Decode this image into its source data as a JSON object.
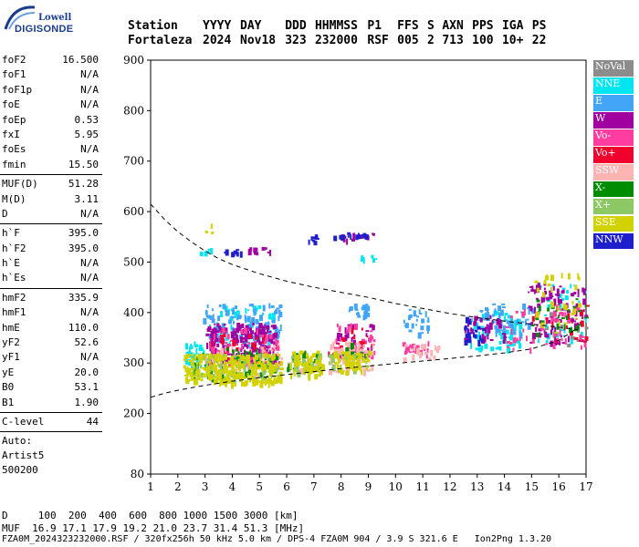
{
  "logo": {
    "top": "Lowell",
    "bottom": "DIGISONDE"
  },
  "header": {
    "labels": [
      "Station",
      "YYYY",
      "DAY",
      "DDD",
      "HHMMSS",
      "P1",
      "FFS",
      "S",
      "AXN",
      "PPS",
      "IGA",
      "PS"
    ],
    "values": [
      "Fortaleza",
      "2024",
      "Nov18",
      "323",
      "232000",
      "RSF",
      "005",
      "2",
      "713",
      "100",
      "10+",
      "22"
    ]
  },
  "side": {
    "group1": [
      {
        "k": "foF2",
        "v": "16.500"
      },
      {
        "k": "foF1",
        "v": "N/A"
      },
      {
        "k": "foF1p",
        "v": "N/A"
      },
      {
        "k": "foE",
        "v": "N/A"
      },
      {
        "k": "foEp",
        "v": "0.53"
      },
      {
        "k": "fxI",
        "v": "5.95"
      },
      {
        "k": "foEs",
        "v": "N/A"
      },
      {
        "k": "fmin",
        "v": "15.50"
      }
    ],
    "group2": [
      {
        "k": "MUF(D)",
        "v": "51.28"
      },
      {
        "k": "M(D)",
        "v": "3.11"
      },
      {
        "k": "D",
        "v": "N/A"
      }
    ],
    "group3": [
      {
        "k": "h`F",
        "v": "395.0"
      },
      {
        "k": "h`F2",
        "v": "395.0"
      },
      {
        "k": "h`E",
        "v": "N/A"
      },
      {
        "k": "h`Es",
        "v": "N/A"
      }
    ],
    "group4": [
      {
        "k": "hmF2",
        "v": "335.9"
      },
      {
        "k": "hmF1",
        "v": "N/A"
      },
      {
        "k": "hmE",
        "v": "110.0"
      },
      {
        "k": "yF2",
        "v": "52.6"
      },
      {
        "k": "yF1",
        "v": "N/A"
      },
      {
        "k": "yE",
        "v": "20.0"
      },
      {
        "k": "B0",
        "v": "53.1"
      },
      {
        "k": "B1",
        "v": "1.90"
      }
    ],
    "group5": [
      {
        "k": "C-level",
        "v": "44"
      }
    ],
    "auto": [
      "Auto:",
      "Artist5",
      "500200"
    ]
  },
  "legend": [
    {
      "label": "NoVal",
      "color": "#8c8c8c"
    },
    {
      "label": "NNE",
      "color": "#00e6f0"
    },
    {
      "label": "E",
      "color": "#42a5f5"
    },
    {
      "label": "W",
      "color": "#a000a0"
    },
    {
      "label": "Vo-",
      "color": "#ff3ca0"
    },
    {
      "label": "Vo+",
      "color": "#f0002d"
    },
    {
      "label": "SSW",
      "color": "#ffb4b4"
    },
    {
      "label": "X-",
      "color": "#008c00"
    },
    {
      "label": "X+",
      "color": "#8cc864"
    },
    {
      "label": "SSE",
      "color": "#d2d200"
    },
    {
      "label": "NNW",
      "color": "#1e1ecc"
    }
  ],
  "bottom": {
    "d_line": "D     100  200  400  600  800 1000 1500 3000 [km]",
    "muf_line": "MUF  16.9 17.1 17.9 19.2 21.0 23.7 31.4 51.3 [MHz]",
    "footer": "FZA0M_2024323232000.RSF / 320fx256h 50 kHz 5.0 km / DPS-4 FZA0M 904 / 3.9 S 321.6 E   Ion2Png 1.3.20"
  },
  "chart_data": {
    "type": "scatter",
    "title": "",
    "xlabel": "",
    "ylabel": "",
    "xlim": [
      1,
      17
    ],
    "ylim": [
      80,
      900
    ],
    "x_ticks": [
      1,
      2,
      3,
      4,
      5,
      6,
      7,
      8,
      9,
      10,
      11,
      12,
      13,
      14,
      15,
      16,
      17
    ],
    "y_ticks": [
      80,
      200,
      300,
      400,
      500,
      600,
      700,
      800,
      900
    ],
    "grid": false,
    "legend_placement": "right",
    "curves": {
      "upper_dashed": [
        [
          1,
          615
        ],
        [
          1.5,
          585
        ],
        [
          2,
          560
        ],
        [
          2.5,
          540
        ],
        [
          3,
          522
        ],
        [
          3.5,
          507
        ],
        [
          4,
          495
        ],
        [
          5,
          477
        ],
        [
          6,
          462
        ],
        [
          7,
          450
        ],
        [
          8,
          440
        ],
        [
          9,
          430
        ],
        [
          10,
          418
        ],
        [
          11,
          408
        ],
        [
          12,
          398
        ],
        [
          13,
          390
        ],
        [
          14,
          383
        ],
        [
          15,
          377
        ],
        [
          16,
          371
        ],
        [
          16.7,
          366
        ]
      ],
      "lower_dashed": [
        [
          1,
          232
        ],
        [
          1.5,
          240
        ],
        [
          2,
          246
        ],
        [
          3,
          256
        ],
        [
          4,
          264
        ],
        [
          5,
          271
        ],
        [
          6,
          277
        ],
        [
          7,
          283
        ],
        [
          8,
          289
        ],
        [
          9,
          294
        ],
        [
          10,
          299
        ],
        [
          11,
          304
        ],
        [
          12,
          309
        ],
        [
          13,
          314
        ],
        [
          14,
          320
        ],
        [
          15,
          328
        ],
        [
          16,
          345
        ],
        [
          16.7,
          370
        ]
      ]
    },
    "series": [
      {
        "name": "NoVal",
        "color": "#8c8c8c",
        "clusters": [
          [
            [
              15.3,
              17.0
            ],
            [
              330,
              420
            ],
            20
          ]
        ]
      },
      {
        "name": "NNE",
        "color": "#00e6f0",
        "clusters": [
          [
            [
              2.2,
              3.0
            ],
            [
              295,
              345
            ],
            35
          ],
          [
            [
              3.5,
              5.5
            ],
            [
              340,
              415
            ],
            50
          ],
          [
            [
              12.6,
              14.6
            ],
            [
              330,
              405
            ],
            70
          ],
          [
            [
              15.2,
              17
            ],
            [
              340,
              470
            ],
            40
          ],
          [
            [
              8.7,
              9.3
            ],
            [
              505,
              515
            ],
            8
          ],
          [
            [
              2.8,
              3.2
            ],
            [
              520,
              528
            ],
            6
          ]
        ]
      },
      {
        "name": "E",
        "color": "#42a5f5",
        "clusters": [
          [
            [
              2.9,
              5.8
            ],
            [
              350,
              420
            ],
            110
          ],
          [
            [
              8.2,
              9.0
            ],
            [
              395,
              420
            ],
            20
          ],
          [
            [
              13.0,
              15.0
            ],
            [
              360,
              420
            ],
            60
          ],
          [
            [
              10.2,
              11.2
            ],
            [
              360,
              410
            ],
            25
          ]
        ]
      },
      {
        "name": "W",
        "color": "#a000a0",
        "clusters": [
          [
            [
              3.0,
              5.6
            ],
            [
              300,
              380
            ],
            200
          ],
          [
            [
              7.8,
              9.2
            ],
            [
              310,
              380
            ],
            40
          ],
          [
            [
              12.5,
              14.0
            ],
            [
              345,
              395
            ],
            40
          ],
          [
            [
              14.8,
              17
            ],
            [
              340,
              460
            ],
            90
          ],
          [
            [
              4.5,
              5.6
            ],
            [
              520,
              530
            ],
            10
          ],
          [
            [
              8,
              9.2
            ],
            [
              545,
              560
            ],
            10
          ]
        ]
      },
      {
        "name": "Vo-",
        "color": "#ff3ca0",
        "clusters": [
          [
            [
              3.0,
              5.7
            ],
            [
              300,
              370
            ],
            60
          ],
          [
            [
              7.7,
              9.2
            ],
            [
              310,
              380
            ],
            35
          ],
          [
            [
              10.2,
              11.2
            ],
            [
              320,
              345
            ],
            20
          ],
          [
            [
              14.0,
              17
            ],
            [
              330,
              420
            ],
            50
          ]
        ]
      },
      {
        "name": "Vo+",
        "color": "#f0002d",
        "clusters": [
          [
            [
              3.2,
              5.5
            ],
            [
              310,
              360
            ],
            25
          ],
          [
            [
              7.5,
              9.2
            ],
            [
              310,
              370
            ],
            18
          ],
          [
            [
              15,
              17
            ],
            [
              340,
              420
            ],
            20
          ]
        ]
      },
      {
        "name": "SSW",
        "color": "#ffb4b4",
        "clusters": [
          [
            [
              3.0,
              5.8
            ],
            [
              280,
              340
            ],
            60
          ],
          [
            [
              7.5,
              9.2
            ],
            [
              285,
              345
            ],
            70
          ],
          [
            [
              6.0,
              7.2
            ],
            [
              290,
              330
            ],
            15
          ],
          [
            [
              10.2,
              11.6
            ],
            [
              310,
              340
            ],
            20
          ]
        ]
      },
      {
        "name": "X-",
        "color": "#008c00",
        "clusters": [
          [
            [
              2.5,
              5.7
            ],
            [
              270,
              330
            ],
            80
          ],
          [
            [
              6.0,
              7.2
            ],
            [
              290,
              325
            ],
            25
          ],
          [
            [
              8,
              9
            ],
            [
              310,
              340
            ],
            10
          ],
          [
            [
              15,
              17
            ],
            [
              360,
              430
            ],
            25
          ]
        ]
      },
      {
        "name": "X+",
        "color": "#8cc864",
        "clusters": [
          [
            [
              2.5,
              5.7
            ],
            [
              270,
              320
            ],
            80
          ],
          [
            [
              6,
              7.2
            ],
            [
              280,
              320
            ],
            30
          ],
          [
            [
              7.5,
              9
            ],
            [
              290,
              320
            ],
            20
          ]
        ]
      },
      {
        "name": "SSE",
        "color": "#d2d200",
        "clusters": [
          [
            [
              2.2,
              5.8
            ],
            [
              260,
              320
            ],
            260
          ],
          [
            [
              6.1,
              7.3
            ],
            [
              275,
              325
            ],
            70
          ],
          [
            [
              7.7,
              9.0
            ],
            [
              285,
              325
            ],
            60
          ],
          [
            [
              15,
              17
            ],
            [
              360,
              480
            ],
            30
          ],
          [
            [
              2.9,
              3.4
            ],
            [
              560,
              580
            ],
            3
          ]
        ]
      },
      {
        "name": "NNW",
        "color": "#1e1ecc",
        "clusters": [
          [
            [
              6.7,
              7.1
            ],
            [
              540,
              555
            ],
            10
          ],
          [
            [
              7.6,
              8.9
            ],
            [
              552,
              560
            ],
            14
          ],
          [
            [
              3.5,
              4.4
            ],
            [
              520,
              526
            ],
            10
          ],
          [
            [
              12.5,
              13.2
            ],
            [
              345,
              395
            ],
            20
          ]
        ]
      }
    ]
  }
}
